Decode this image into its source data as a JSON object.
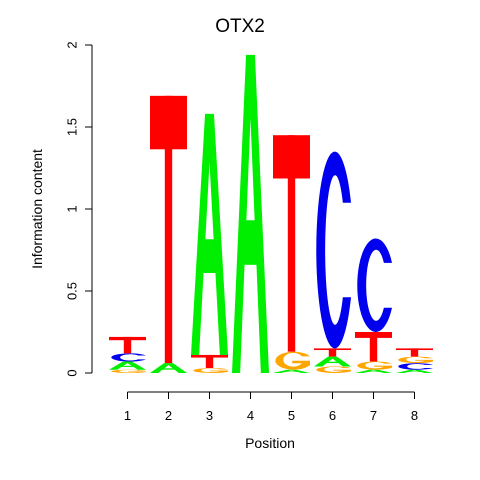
{
  "chart_data": {
    "type": "sequence-logo",
    "title": "OTX2",
    "xlabel": "Position",
    "ylabel": "Information content",
    "ylim": [
      0,
      2
    ],
    "yticks": [
      "0",
      "0.5",
      "1",
      "1.5",
      "2"
    ],
    "positions": [
      "1",
      "2",
      "3",
      "4",
      "5",
      "6",
      "7",
      "8"
    ],
    "colors": {
      "A": "#00ee00",
      "C": "#0000ee",
      "G": "#ffa500",
      "T": "#ff0000"
    },
    "columns": [
      [
        {
          "base": "G",
          "h": 0.02
        },
        {
          "base": "A",
          "h": 0.05
        },
        {
          "base": "C",
          "h": 0.05
        },
        {
          "base": "T",
          "h": 0.1
        }
      ],
      [
        {
          "base": "A",
          "h": 0.06
        },
        {
          "base": "T",
          "h": 1.63
        }
      ],
      [
        {
          "base": "G",
          "h": 0.03
        },
        {
          "base": "T",
          "h": 0.08
        },
        {
          "base": "A",
          "h": 1.47
        }
      ],
      [
        {
          "base": "A",
          "h": 1.94
        }
      ],
      [
        {
          "base": "A",
          "h": 0.02
        },
        {
          "base": "G",
          "h": 0.11
        },
        {
          "base": "T",
          "h": 1.32
        }
      ],
      [
        {
          "base": "G",
          "h": 0.04
        },
        {
          "base": "A",
          "h": 0.06
        },
        {
          "base": "T",
          "h": 0.05
        },
        {
          "base": "C",
          "h": 1.2
        }
      ],
      [
        {
          "base": "A",
          "h": 0.02
        },
        {
          "base": "G",
          "h": 0.05
        },
        {
          "base": "T",
          "h": 0.18
        },
        {
          "base": "C",
          "h": 0.57
        }
      ],
      [
        {
          "base": "A",
          "h": 0.02
        },
        {
          "base": "C",
          "h": 0.04
        },
        {
          "base": "G",
          "h": 0.04
        },
        {
          "base": "T",
          "h": 0.05
        }
      ]
    ]
  }
}
